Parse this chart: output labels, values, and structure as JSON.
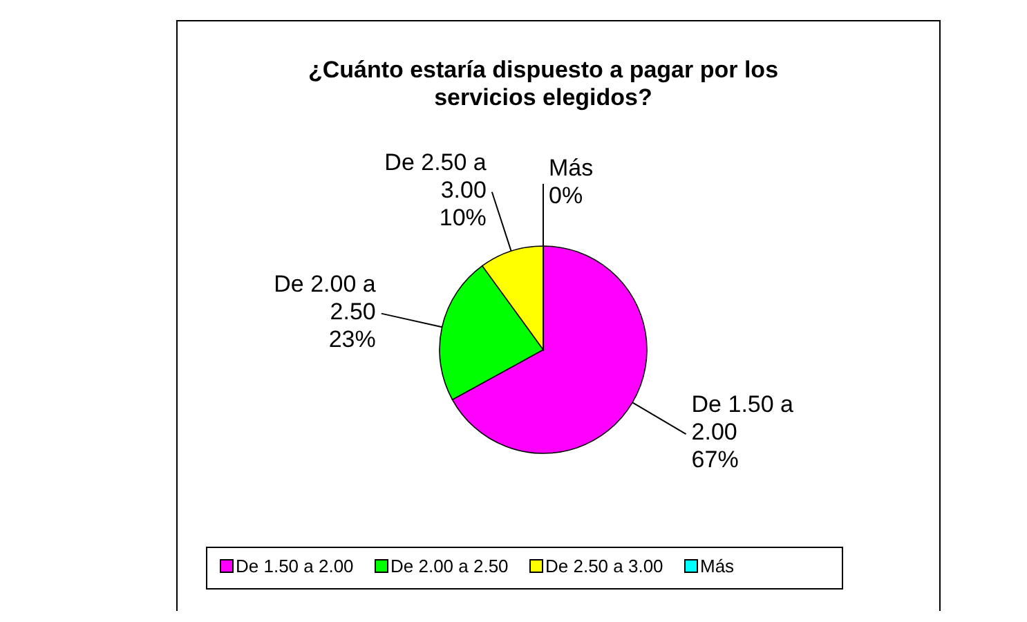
{
  "chart_data": {
    "type": "pie",
    "title": "¿Cuánto estaría dispuesto a pagar por los servicios elegidos?",
    "categories": [
      "De 1.50 a 2.00",
      "De 2.00 a 2.50",
      "De 2.50 a 3.00",
      "Más"
    ],
    "values": [
      67,
      23,
      10,
      0
    ],
    "value_labels": [
      "67%",
      "23%",
      "10%",
      "0%"
    ],
    "colors": [
      "#ff00ff",
      "#00ff00",
      "#ffff00",
      "#00ffff"
    ],
    "legend": "bottom"
  }
}
